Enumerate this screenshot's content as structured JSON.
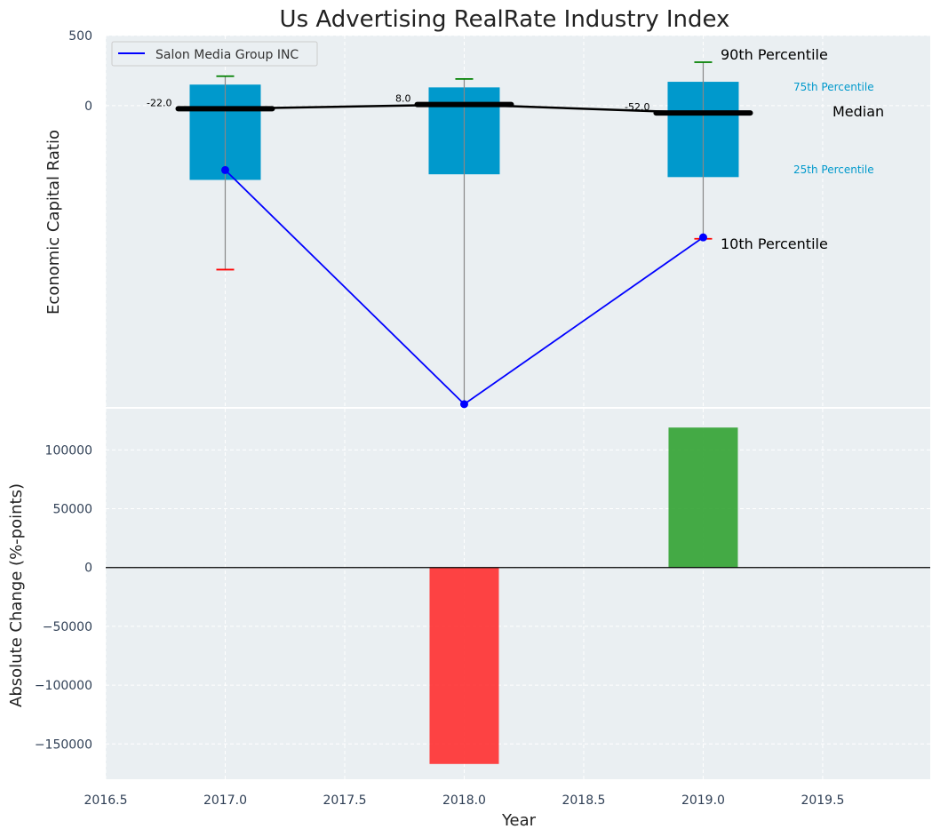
{
  "chart_data": {
    "title": "Us Advertising RealRate Industry Index",
    "xlabel": "Year",
    "x_ticks": [
      "2016.5",
      "2017.0",
      "2017.5",
      "2018.0",
      "2018.5",
      "2019.0",
      "2019.5"
    ],
    "xlim": [
      2016.5,
      2019.95
    ],
    "colors": {
      "box": "#0099cc",
      "company_line": "#0000ff",
      "median_line": "#000000",
      "p90_cap": "#008000",
      "p10_cap": "#ff0000",
      "positive_bar": "#2ca02c",
      "negative_bar": "#ff2a2a",
      "percentile_text": "#0099cc",
      "panel_bg": "#eaeff2"
    },
    "top_panel": {
      "type": "box_percentile",
      "ylabel": "Economic Capital Ratio",
      "ylim": [
        -2150,
        500
      ],
      "y_ticks": [
        "500",
        "0"
      ],
      "x": [
        2017,
        2018,
        2019
      ],
      "p90": [
        210,
        190,
        310
      ],
      "p75": [
        150,
        130,
        170
      ],
      "median": [
        -22,
        8,
        -52
      ],
      "median_labels": [
        "-22.0",
        "8.0",
        "-52.0"
      ],
      "p25": [
        -530,
        -490,
        -510
      ],
      "p10": [
        -1170,
        null,
        -950
      ],
      "company": {
        "name": "Salon Media Group INC",
        "values": [
          -460,
          -2130,
          -940
        ]
      },
      "legend": {
        "label": "Salon Media Group INC",
        "placement": "top-left"
      },
      "annotations": {
        "p90": "90th Percentile",
        "p75": "75th Percentile",
        "median": "Median",
        "p25": "25th Percentile",
        "p10": "10th Percentile"
      }
    },
    "bottom_panel": {
      "type": "bar",
      "ylabel": "Absolute Change (%-points)",
      "ylim": [
        -180000,
        135000
      ],
      "y_ticks": [
        100000,
        50000,
        0,
        -50000,
        -100000,
        -150000
      ],
      "y_tick_labels": [
        "100000",
        "50000",
        "0",
        "−50000",
        "−100000",
        "−150000"
      ],
      "x": [
        2018,
        2019
      ],
      "values": [
        -167000,
        119000
      ]
    }
  }
}
